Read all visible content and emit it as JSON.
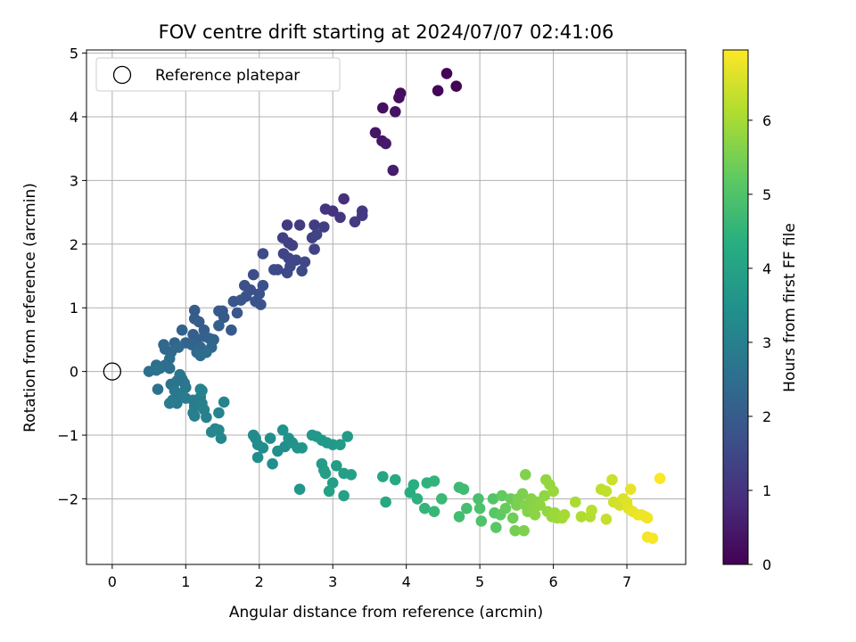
{
  "chart_data": {
    "type": "scatter",
    "title": "FOV centre drift starting at 2024/07/07 02:41:06",
    "xlabel": "Angular distance from reference (arcmin)",
    "ylabel": "Rotation from reference (arcmin)",
    "xlim": [
      -0.35,
      7.8
    ],
    "ylim": [
      -3.03,
      5.05
    ],
    "xticks": [
      0,
      1,
      2,
      3,
      4,
      5,
      6,
      7
    ],
    "yticks": [
      -2,
      -1,
      0,
      1,
      2,
      3,
      4,
      5
    ],
    "tick_labels_x": [
      "0",
      "1",
      "2",
      "3",
      "4",
      "5",
      "6",
      "7"
    ],
    "tick_labels_y": [
      "−2",
      "−1",
      "0",
      "1",
      "2",
      "3",
      "4",
      "5"
    ],
    "grid": true,
    "legend": {
      "placement": "top-left",
      "entries": [
        "Reference platepar"
      ]
    },
    "reference_point": {
      "x": 0,
      "y": 0
    },
    "colorbar": {
      "label": "Hours from first FF file",
      "range": [
        0,
        6.95
      ],
      "ticks": [
        0,
        1,
        2,
        3,
        4,
        5,
        6
      ],
      "tick_labels": [
        "0",
        "1",
        "2",
        "3",
        "4",
        "5",
        "6"
      ],
      "colormap": "viridis"
    },
    "points": [
      [
        4.68,
        4.48,
        0.02
      ],
      [
        4.55,
        4.68,
        0.06
      ],
      [
        4.43,
        4.41,
        0.1
      ],
      [
        3.92,
        4.37,
        0.22
      ],
      [
        3.9,
        4.3,
        0.26
      ],
      [
        3.68,
        4.14,
        0.3
      ],
      [
        3.85,
        4.08,
        0.34
      ],
      [
        3.58,
        3.75,
        0.4
      ],
      [
        3.67,
        3.62,
        0.44
      ],
      [
        3.72,
        3.58,
        0.48
      ],
      [
        3.82,
        3.16,
        0.55
      ],
      [
        3.15,
        2.71,
        0.95
      ],
      [
        3.0,
        2.52,
        1.0
      ],
      [
        2.9,
        2.55,
        1.05
      ],
      [
        3.1,
        2.42,
        1.1
      ],
      [
        3.4,
        2.52,
        1.12
      ],
      [
        3.4,
        2.45,
        1.15
      ],
      [
        3.3,
        2.35,
        1.18
      ],
      [
        2.38,
        2.3,
        1.2
      ],
      [
        2.55,
        2.3,
        1.22
      ],
      [
        2.75,
        2.3,
        1.24
      ],
      [
        2.88,
        2.27,
        1.26
      ],
      [
        2.32,
        2.1,
        1.3
      ],
      [
        2.4,
        2.02,
        1.32
      ],
      [
        2.45,
        1.98,
        1.34
      ],
      [
        2.72,
        2.1,
        1.36
      ],
      [
        2.78,
        2.15,
        1.38
      ],
      [
        2.75,
        1.92,
        1.4
      ],
      [
        2.33,
        1.85,
        1.42
      ],
      [
        2.4,
        1.78,
        1.44
      ],
      [
        2.5,
        1.75,
        1.46
      ],
      [
        2.62,
        1.72,
        1.48
      ],
      [
        2.42,
        1.65,
        1.5
      ],
      [
        2.25,
        1.6,
        1.52
      ],
      [
        2.38,
        1.55,
        1.54
      ],
      [
        2.58,
        1.58,
        1.56
      ],
      [
        2.2,
        1.6,
        1.58
      ],
      [
        2.05,
        1.85,
        1.6
      ],
      [
        1.92,
        1.52,
        1.65
      ],
      [
        1.8,
        1.35,
        1.68
      ],
      [
        1.88,
        1.28,
        1.7
      ],
      [
        2.05,
        1.35,
        1.72
      ],
      [
        2.0,
        1.22,
        1.74
      ],
      [
        1.82,
        1.18,
        1.76
      ],
      [
        1.95,
        1.1,
        1.78
      ],
      [
        2.02,
        1.05,
        1.8
      ],
      [
        1.65,
        1.1,
        1.82
      ],
      [
        1.75,
        1.12,
        1.84
      ],
      [
        1.7,
        0.92,
        1.86
      ],
      [
        1.5,
        0.95,
        1.9
      ],
      [
        1.45,
        0.95,
        1.92
      ],
      [
        1.52,
        0.85,
        1.94
      ],
      [
        1.62,
        0.65,
        1.96
      ],
      [
        1.12,
        0.96,
        2.0
      ],
      [
        1.12,
        0.83,
        2.02
      ],
      [
        1.18,
        0.78,
        2.04
      ],
      [
        1.25,
        0.65,
        2.06
      ],
      [
        1.45,
        0.72,
        2.08
      ],
      [
        1.1,
        0.58,
        2.1
      ],
      [
        1.15,
        0.5,
        2.12
      ],
      [
        1.25,
        0.55,
        2.14
      ],
      [
        1.32,
        0.52,
        2.16
      ],
      [
        1.38,
        0.5,
        2.18
      ],
      [
        0.95,
        0.65,
        2.2
      ],
      [
        0.85,
        0.45,
        2.22
      ],
      [
        1.0,
        0.45,
        2.24
      ],
      [
        1.08,
        0.42,
        2.26
      ],
      [
        1.2,
        0.38,
        2.28
      ],
      [
        1.35,
        0.38,
        2.3
      ],
      [
        0.7,
        0.42,
        2.32
      ],
      [
        0.72,
        0.35,
        2.34
      ],
      [
        0.8,
        0.3,
        2.36
      ],
      [
        0.9,
        0.38,
        2.38
      ],
      [
        1.15,
        0.3,
        2.4
      ],
      [
        1.2,
        0.25,
        2.42
      ],
      [
        1.28,
        0.3,
        2.44
      ],
      [
        0.78,
        0.2,
        2.46
      ],
      [
        0.72,
        0.1,
        2.48
      ],
      [
        0.78,
        0.05,
        2.5
      ],
      [
        0.65,
        0.05,
        2.52
      ],
      [
        0.6,
        0.1,
        2.54
      ],
      [
        0.5,
        0.0,
        2.56
      ],
      [
        0.6,
        0.02,
        2.58
      ],
      [
        0.62,
        -0.28,
        2.62
      ],
      [
        0.8,
        -0.2,
        2.64
      ],
      [
        0.88,
        -0.15,
        2.66
      ],
      [
        0.92,
        -0.05,
        2.68
      ],
      [
        0.95,
        -0.12,
        2.7
      ],
      [
        0.98,
        -0.18,
        2.72
      ],
      [
        1.0,
        -0.25,
        2.74
      ],
      [
        0.85,
        -0.3,
        2.76
      ],
      [
        0.9,
        -0.35,
        2.78
      ],
      [
        0.95,
        -0.4,
        2.8
      ],
      [
        0.82,
        -0.45,
        2.82
      ],
      [
        0.88,
        -0.5,
        2.84
      ],
      [
        0.78,
        -0.5,
        2.86
      ],
      [
        1.0,
        -0.42,
        2.88
      ],
      [
        1.1,
        -0.45,
        2.9
      ],
      [
        1.12,
        -0.55,
        2.92
      ],
      [
        1.1,
        -0.65,
        2.94
      ],
      [
        1.12,
        -0.7,
        2.96
      ],
      [
        1.2,
        -0.4,
        2.98
      ],
      [
        1.22,
        -0.5,
        3.0
      ],
      [
        1.25,
        -0.6,
        3.02
      ],
      [
        1.28,
        -0.72,
        3.04
      ],
      [
        1.2,
        -0.28,
        3.06
      ],
      [
        1.22,
        -0.3,
        3.08
      ],
      [
        1.52,
        -0.48,
        3.1
      ],
      [
        1.45,
        -0.65,
        3.12
      ],
      [
        1.4,
        -0.9,
        3.14
      ],
      [
        1.35,
        -0.95,
        3.16
      ],
      [
        1.45,
        -0.92,
        3.18
      ],
      [
        1.48,
        -1.05,
        3.2
      ],
      [
        1.92,
        -1.0,
        3.3
      ],
      [
        1.95,
        -1.05,
        3.32
      ],
      [
        1.98,
        -1.15,
        3.34
      ],
      [
        2.05,
        -1.2,
        3.36
      ],
      [
        1.98,
        -1.35,
        3.38
      ],
      [
        2.15,
        -1.05,
        3.4
      ],
      [
        2.18,
        -1.45,
        3.42
      ],
      [
        2.25,
        -1.25,
        3.44
      ],
      [
        2.35,
        -1.18,
        3.46
      ],
      [
        2.32,
        -0.92,
        3.5
      ],
      [
        2.4,
        -1.05,
        3.52
      ],
      [
        2.45,
        -1.12,
        3.54
      ],
      [
        2.52,
        -1.2,
        3.56
      ],
      [
        2.58,
        -1.2,
        3.58
      ],
      [
        2.55,
        -1.85,
        3.62
      ],
      [
        2.72,
        -1.0,
        3.65
      ],
      [
        2.78,
        -1.02,
        3.68
      ],
      [
        2.85,
        -1.08,
        3.7
      ],
      [
        2.92,
        -1.12,
        3.72
      ],
      [
        3.0,
        -1.15,
        3.74
      ],
      [
        3.2,
        -1.02,
        3.76
      ],
      [
        3.1,
        -1.15,
        3.78
      ],
      [
        2.85,
        -1.45,
        3.8
      ],
      [
        2.88,
        -1.55,
        3.82
      ],
      [
        3.05,
        -1.48,
        3.84
      ],
      [
        2.9,
        -1.6,
        3.86
      ],
      [
        3.0,
        -1.75,
        3.88
      ],
      [
        3.15,
        -1.6,
        3.9
      ],
      [
        3.25,
        -1.62,
        3.92
      ],
      [
        2.95,
        -1.88,
        3.94
      ],
      [
        3.15,
        -1.95,
        3.96
      ],
      [
        3.68,
        -1.65,
        4.1
      ],
      [
        3.72,
        -2.05,
        4.15
      ],
      [
        3.85,
        -1.7,
        4.2
      ],
      [
        4.05,
        -1.9,
        4.3
      ],
      [
        4.1,
        -1.78,
        4.35
      ],
      [
        4.15,
        -2.0,
        4.4
      ],
      [
        4.28,
        -1.75,
        4.45
      ],
      [
        4.38,
        -1.72,
        4.5
      ],
      [
        4.25,
        -2.15,
        4.55
      ],
      [
        4.38,
        -2.2,
        4.6
      ],
      [
        4.48,
        -2.0,
        4.65
      ],
      [
        4.72,
        -1.82,
        4.7
      ],
      [
        4.78,
        -1.85,
        4.75
      ],
      [
        4.72,
        -2.28,
        4.8
      ],
      [
        4.82,
        -2.15,
        4.85
      ],
      [
        4.98,
        -2.0,
        4.9
      ],
      [
        5.0,
        -2.15,
        4.95
      ],
      [
        5.02,
        -2.35,
        5.0
      ],
      [
        5.18,
        -2.0,
        5.05
      ],
      [
        5.2,
        -2.22,
        5.1
      ],
      [
        5.22,
        -2.45,
        5.15
      ],
      [
        5.28,
        -2.25,
        5.2
      ],
      [
        5.3,
        -1.95,
        5.25
      ],
      [
        5.35,
        -2.15,
        5.3
      ],
      [
        5.42,
        -2.0,
        5.35
      ],
      [
        5.45,
        -2.3,
        5.4
      ],
      [
        5.48,
        -2.5,
        5.45
      ],
      [
        5.5,
        -2.1,
        5.5
      ],
      [
        5.52,
        -2.0,
        5.52
      ],
      [
        5.58,
        -1.92,
        5.55
      ],
      [
        5.6,
        -2.5,
        5.58
      ],
      [
        5.62,
        -1.62,
        5.6
      ],
      [
        5.62,
        -2.1,
        5.62
      ],
      [
        5.65,
        -2.2,
        5.64
      ],
      [
        5.7,
        -2.0,
        5.66
      ],
      [
        5.72,
        -2.15,
        5.68
      ],
      [
        5.75,
        -2.25,
        5.7
      ],
      [
        5.78,
        -2.05,
        5.72
      ],
      [
        5.82,
        -2.1,
        5.74
      ],
      [
        5.88,
        -1.95,
        5.76
      ],
      [
        5.9,
        -1.7,
        5.78
      ],
      [
        5.92,
        -2.2,
        5.8
      ],
      [
        5.95,
        -1.78,
        5.82
      ],
      [
        5.98,
        -2.28,
        5.84
      ],
      [
        6.0,
        -1.88,
        5.86
      ],
      [
        6.02,
        -2.22,
        5.88
      ],
      [
        6.05,
        -2.3,
        5.9
      ],
      [
        6.12,
        -2.3,
        5.95
      ],
      [
        6.15,
        -2.25,
        6.0
      ],
      [
        6.3,
        -2.05,
        6.05
      ],
      [
        6.38,
        -2.28,
        6.1
      ],
      [
        6.5,
        -2.28,
        6.15
      ],
      [
        6.52,
        -2.18,
        6.2
      ],
      [
        6.65,
        -1.85,
        6.25
      ],
      [
        6.72,
        -1.88,
        6.3
      ],
      [
        6.72,
        -2.32,
        6.35
      ],
      [
        6.8,
        -1.7,
        6.4
      ],
      [
        6.82,
        -2.05,
        6.45
      ],
      [
        6.9,
        -2.1,
        6.5
      ],
      [
        6.95,
        -2.0,
        6.55
      ],
      [
        7.0,
        -2.05,
        6.6
      ],
      [
        7.02,
        -2.15,
        6.65
      ],
      [
        7.05,
        -1.85,
        6.7
      ],
      [
        7.08,
        -2.2,
        6.72
      ],
      [
        7.15,
        -2.25,
        6.75
      ],
      [
        7.2,
        -2.25,
        6.78
      ],
      [
        7.25,
        -2.28,
        6.8
      ],
      [
        7.28,
        -2.3,
        6.82
      ],
      [
        7.28,
        -2.6,
        6.85
      ],
      [
        7.35,
        -2.62,
        6.88
      ],
      [
        7.45,
        -1.68,
        6.92
      ]
    ]
  }
}
